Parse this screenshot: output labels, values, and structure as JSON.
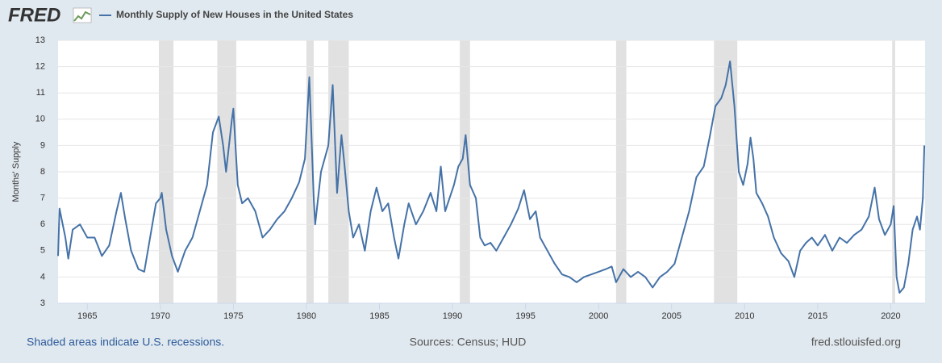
{
  "logo": "FRED",
  "chart_data": {
    "type": "line",
    "y_label": "Months' Supply",
    "x": [
      1963.0,
      1963.1,
      1963.5,
      1963.7,
      1964.0,
      1964.5,
      1965.0,
      1965.5,
      1966.0,
      1966.5,
      1967.0,
      1967.3,
      1967.6,
      1968.0,
      1968.5,
      1968.9,
      1969.3,
      1969.7,
      1970.0,
      1970.1,
      1970.4,
      1970.8,
      1971.2,
      1971.7,
      1972.2,
      1972.7,
      1973.2,
      1973.6,
      1974.0,
      1974.3,
      1974.5,
      1974.9,
      1975.0,
      1975.3,
      1975.6,
      1976.0,
      1976.5,
      1977.0,
      1977.5,
      1978.0,
      1978.5,
      1979.0,
      1979.5,
      1979.9,
      1980.2,
      1980.5,
      1980.6,
      1981.0,
      1981.5,
      1981.8,
      1982.1,
      1982.4,
      1982.6,
      1982.9,
      1983.2,
      1983.6,
      1984.0,
      1984.4,
      1984.8,
      1985.2,
      1985.6,
      1986.0,
      1986.3,
      1986.7,
      1987.0,
      1987.5,
      1988.0,
      1988.5,
      1988.9,
      1989.2,
      1989.5,
      1989.8,
      1990.1,
      1990.4,
      1990.7,
      1990.9,
      1991.2,
      1991.6,
      1991.9,
      1992.2,
      1992.6,
      1993.0,
      1993.5,
      1994.0,
      1994.5,
      1994.9,
      1995.3,
      1995.7,
      1996.0,
      1996.5,
      1997.0,
      1997.5,
      1998.0,
      1998.5,
      1999.0,
      1999.5,
      2000.0,
      2000.5,
      2000.9,
      2001.2,
      2001.7,
      2002.2,
      2002.7,
      2003.2,
      2003.7,
      2004.2,
      2004.7,
      2005.2,
      2005.7,
      2006.2,
      2006.7,
      2007.2,
      2007.6,
      2008.0,
      2008.4,
      2008.7,
      2009.0,
      2009.3,
      2009.6,
      2009.9,
      2010.2,
      2010.4,
      2010.6,
      2010.8,
      2011.2,
      2011.6,
      2012.0,
      2012.5,
      2013.0,
      2013.4,
      2013.8,
      2014.2,
      2014.6,
      2015.0,
      2015.5,
      2016.0,
      2016.5,
      2017.0,
      2017.5,
      2018.0,
      2018.5,
      2018.9,
      2019.2,
      2019.6,
      2020.0,
      2020.2,
      2020.4,
      2020.6,
      2020.9,
      2021.2,
      2021.5,
      2021.8,
      2022.0,
      2022.2,
      2022.3
    ],
    "series": [
      {
        "name": "Monthly Supply of New Houses in the United States",
        "color": "#4572a7",
        "values": [
          4.8,
          6.6,
          5.5,
          4.7,
          5.8,
          6.0,
          5.5,
          5.5,
          4.8,
          5.2,
          6.5,
          7.2,
          6.2,
          5.0,
          4.3,
          4.2,
          5.5,
          6.8,
          7.0,
          7.2,
          5.8,
          4.8,
          4.2,
          5.0,
          5.5,
          6.5,
          7.5,
          9.5,
          10.1,
          9.0,
          8.0,
          10.0,
          10.4,
          7.5,
          6.8,
          7.0,
          6.5,
          5.5,
          5.8,
          6.2,
          6.5,
          7.0,
          7.6,
          8.5,
          11.6,
          7.0,
          6.0,
          8.0,
          9.0,
          11.3,
          7.2,
          9.4,
          8.3,
          6.5,
          5.5,
          6.0,
          5.0,
          6.5,
          7.4,
          6.5,
          6.8,
          5.5,
          4.7,
          6.0,
          6.8,
          6.0,
          6.5,
          7.2,
          6.5,
          8.2,
          6.5,
          7.0,
          7.5,
          8.2,
          8.5,
          9.4,
          7.5,
          7.0,
          5.5,
          5.2,
          5.3,
          5.0,
          5.5,
          6.0,
          6.6,
          7.3,
          6.2,
          6.5,
          5.5,
          5.0,
          4.5,
          4.1,
          4.0,
          3.8,
          4.0,
          4.1,
          4.2,
          4.3,
          4.4,
          3.8,
          4.3,
          4.0,
          4.2,
          4.0,
          3.6,
          4.0,
          4.2,
          4.5,
          5.5,
          6.5,
          7.8,
          8.2,
          9.3,
          10.5,
          10.8,
          11.3,
          12.2,
          10.5,
          8.0,
          7.5,
          8.3,
          9.3,
          8.5,
          7.2,
          6.8,
          6.3,
          5.5,
          4.9,
          4.6,
          4.0,
          5.0,
          5.3,
          5.5,
          5.2,
          5.6,
          5.0,
          5.5,
          5.3,
          5.6,
          5.8,
          6.3,
          7.4,
          6.2,
          5.6,
          6.0,
          6.7,
          4.0,
          3.4,
          3.6,
          4.5,
          5.8,
          6.3,
          5.8,
          7.0,
          9.0
        ]
      }
    ],
    "recessions": [
      [
        1969.9,
        1970.9
      ],
      [
        1973.9,
        1975.2
      ],
      [
        1980.0,
        1980.5
      ],
      [
        1981.5,
        1982.9
      ],
      [
        1990.5,
        1991.2
      ],
      [
        2001.2,
        2001.9
      ],
      [
        2007.9,
        2009.5
      ],
      [
        2020.1,
        2020.3
      ]
    ],
    "xlim": [
      1963.0,
      2022.35
    ],
    "ylim": [
      3,
      13
    ],
    "xticks": [
      1965,
      1970,
      1975,
      1980,
      1985,
      1990,
      1995,
      2000,
      2005,
      2010,
      2015,
      2020
    ],
    "yticks": [
      3,
      4,
      5,
      6,
      7,
      8,
      9,
      10,
      11,
      12,
      13
    ],
    "grid": true,
    "note": "Shaded areas indicate U.S. recessions.",
    "source": "Sources: Census; HUD",
    "site": "fred.stlouisfed.org"
  }
}
